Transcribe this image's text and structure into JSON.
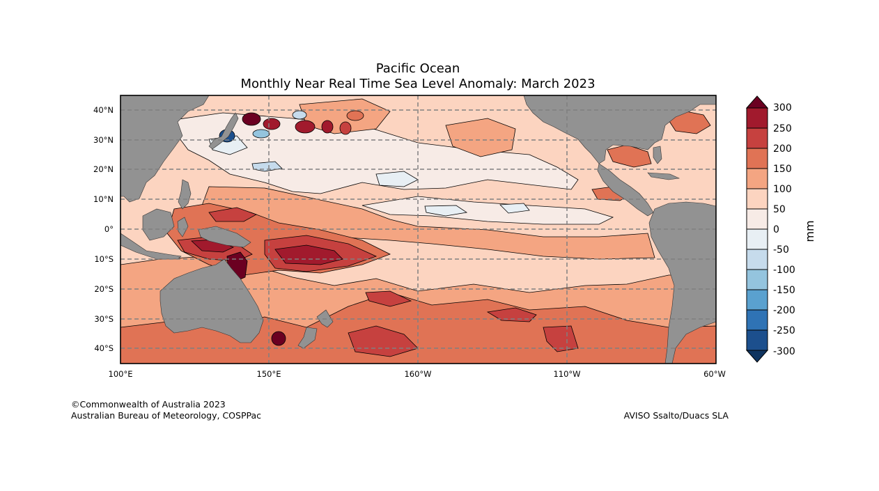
{
  "title": {
    "line1": "Pacific Ocean",
    "line2": "Monthly Near Real Time Sea Level Anomaly: March 2023"
  },
  "map": {
    "lat_labels": [
      "40°N",
      "30°N",
      "20°N",
      "10°N",
      "0°",
      "10°S",
      "20°S",
      "30°S",
      "40°S"
    ],
    "lon_labels": [
      "100°E",
      "150°E",
      "160°W",
      "110°W",
      "60°W"
    ],
    "colors": {
      "land": "#929292",
      "neg50": "#e8eff4",
      "neg100": "#c6dbec",
      "neg150": "#94c4de",
      "neg200": "#5aa1cf",
      "neg250": "#2f73b5",
      "neg300": "#1c4f8d",
      "pos0": "#f7ebe6",
      "pos50": "#fcd4c0",
      "pos100": "#f4a582",
      "pos150": "#e07355",
      "pos200": "#c6413f",
      "pos250": "#a11a2d",
      "pos300": "#6b0021",
      "grid": "#808080"
    }
  },
  "colorbar": {
    "labels": [
      "300",
      "250",
      "200",
      "150",
      "100",
      "50",
      "0",
      "-50",
      "-100",
      "-150",
      "-200",
      "-250",
      "-300"
    ],
    "unit": "mm"
  },
  "credits": {
    "left_line1": "©Commonwealth of Australia 2023",
    "left_line2": "Australian Bureau of Meteorology, COSPPac",
    "right": "AVISO Ssalto/Duacs SLA"
  }
}
